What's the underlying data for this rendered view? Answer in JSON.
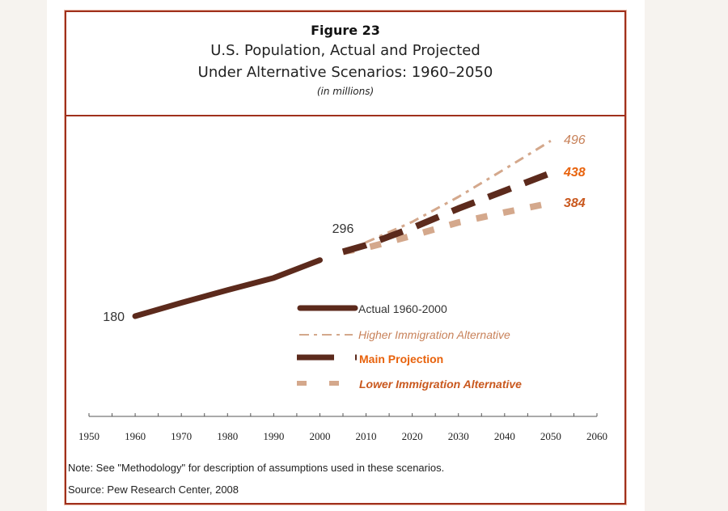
{
  "figure": {
    "number": "Figure 23",
    "title_line1": "U.S. Population, Actual and Projected",
    "title_line2": "Under Alternative Scenarios:  1960–2050",
    "units": "(in millions)"
  },
  "note": "Note:  See \"Methodology\" for description of assumptions used in these scenarios.",
  "source": "Source: Pew Research Center, 2008",
  "colors": {
    "frame": "#a0301c",
    "actual": "#5c2a1c",
    "main": "#5c2a1c",
    "higher": "#d4a88c",
    "lower": "#d4a88c",
    "accent_label": "#e8620c",
    "higher_label": "#c8825a",
    "lower_label": "#c9581e"
  },
  "chart_data": {
    "type": "line",
    "title": "U.S. Population, Actual and Projected Under Alternative Scenarios: 1960–2050",
    "subtitle": "(in millions)",
    "xlabel": "",
    "ylabel": "",
    "xlim": [
      1950,
      2060
    ],
    "ylim": [
      180,
      500
    ],
    "x_ticks": [
      1950,
      1960,
      1970,
      1980,
      1990,
      2000,
      2010,
      2020,
      2030,
      2040,
      2050,
      2060
    ],
    "grid": false,
    "legend_position": "center",
    "series": [
      {
        "name": "Actual 1960-2000",
        "x": [
          1960,
          1970,
          1980,
          1990,
          2000
        ],
        "values": [
          180,
          204,
          227,
          249,
          281
        ]
      },
      {
        "name": "Higher Immigration Alternative",
        "x": [
          2005,
          2010,
          2020,
          2030,
          2040,
          2050
        ],
        "values": [
          296,
          313,
          350,
          395,
          445,
          496
        ]
      },
      {
        "name": "Main Projection",
        "x": [
          2005,
          2010,
          2020,
          2030,
          2040,
          2050
        ],
        "values": [
          296,
          308,
          339,
          374,
          406,
          438
        ]
      },
      {
        "name": "Lower Immigration Alternative",
        "x": [
          2005,
          2010,
          2020,
          2030,
          2040,
          2050
        ],
        "values": [
          296,
          303,
          325,
          349,
          367,
          384
        ]
      }
    ],
    "annotations": [
      {
        "text": "180",
        "x": 1960,
        "y": 180
      },
      {
        "text": "296",
        "x": 2005,
        "y": 296
      },
      {
        "text": "496",
        "x": 2050,
        "y": 496
      },
      {
        "text": "438",
        "x": 2050,
        "y": 438
      },
      {
        "text": "384",
        "x": 2050,
        "y": 384
      }
    ]
  }
}
